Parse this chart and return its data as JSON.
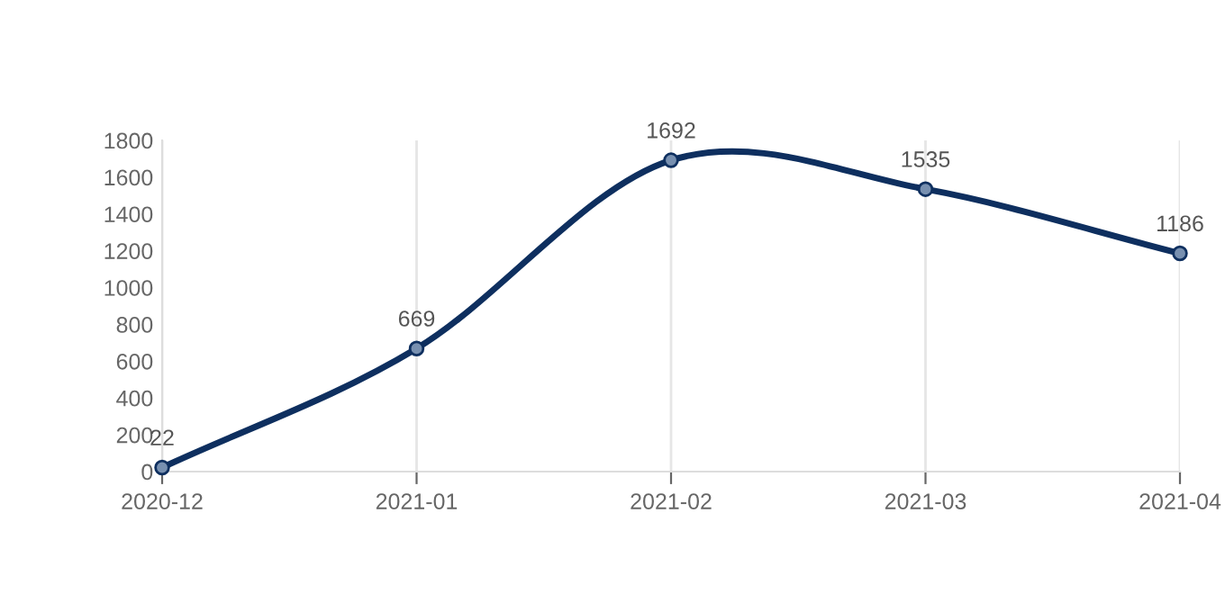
{
  "chart_data": {
    "type": "line",
    "categories": [
      "2020-12",
      "2021-01",
      "2021-02",
      "2021-03",
      "2021-04"
    ],
    "series": [
      {
        "color": "#0e2f5f",
        "values": [
          22,
          669,
          1692,
          1535,
          1186
        ]
      }
    ],
    "ylim": [
      0,
      1800
    ],
    "yticks": [
      0,
      200,
      400,
      600,
      800,
      1000,
      1200,
      1400,
      1600,
      1800
    ],
    "grid": "x",
    "data_labels": true,
    "marker": "circle",
    "line_style": "solid"
  }
}
